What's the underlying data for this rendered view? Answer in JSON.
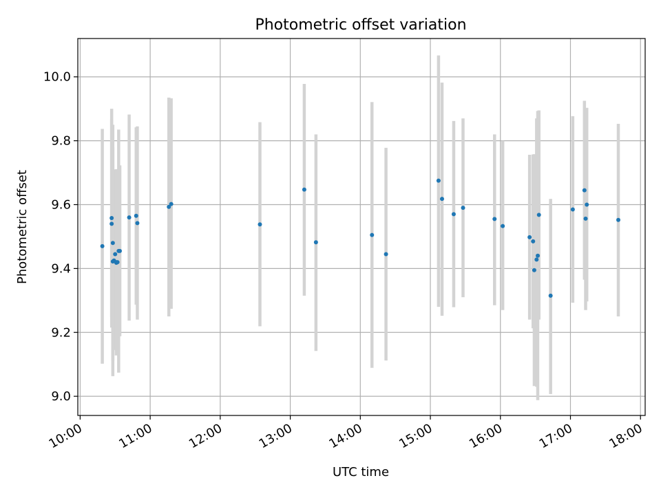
{
  "colors": {
    "point": "#1f77b4",
    "errorbar": "#d3d3d3",
    "grid": "#b0b0b0",
    "axis": "#000000"
  },
  "chart_data": {
    "type": "scatter",
    "title": "Photometric offset variation",
    "xlabel": "UTC time",
    "ylabel": "Photometric offset",
    "grid": true,
    "legend": "none",
    "xlim": [
      "09:58",
      "18:04"
    ],
    "ylim": [
      8.94,
      10.12
    ],
    "x_ticks": [
      "10:00",
      "11:00",
      "12:00",
      "13:00",
      "14:00",
      "15:00",
      "16:00",
      "17:00",
      "18:00"
    ],
    "y_ticks": [
      "9.0",
      "9.2",
      "9.4",
      "9.6",
      "9.8",
      "10.0"
    ],
    "series": [
      {
        "marker": "point with vertical error bar",
        "points": [
          {
            "t": "10:19",
            "y": 9.47,
            "low": 9.102,
            "high": 9.837
          },
          {
            "t": "10:27",
            "y": 9.558,
            "low": 9.248,
            "high": 9.867
          },
          {
            "t": "10:27",
            "y": 9.54,
            "low": 9.215,
            "high": 9.9
          },
          {
            "t": "10:28",
            "y": 9.48,
            "low": 9.111,
            "high": 9.85
          },
          {
            "t": "10:28",
            "y": 9.422,
            "low": 9.063,
            "high": 9.78
          },
          {
            "t": "10:29",
            "y": 9.425,
            "low": 9.145,
            "high": 9.704
          },
          {
            "t": "10:30",
            "y": 9.445,
            "low": 9.159,
            "high": 9.71
          },
          {
            "t": "10:31",
            "y": 9.42,
            "low": 9.128,
            "high": 9.711
          },
          {
            "t": "10:31",
            "y": 9.418,
            "low": 9.16,
            "high": 9.673
          },
          {
            "t": "10:32",
            "y": 9.42,
            "low": 9.207,
            "high": 9.633
          },
          {
            "t": "10:33",
            "y": 9.455,
            "low": 9.074,
            "high": 9.835
          },
          {
            "t": "10:34",
            "y": 9.455,
            "low": 9.188,
            "high": 9.723
          },
          {
            "t": "10:42",
            "y": 9.56,
            "low": 9.237,
            "high": 9.882
          },
          {
            "t": "10:48",
            "y": 9.565,
            "low": 9.287,
            "high": 9.842
          },
          {
            "t": "10:49",
            "y": 9.542,
            "low": 9.24,
            "high": 9.845
          },
          {
            "t": "11:16",
            "y": 9.593,
            "low": 9.25,
            "high": 9.935
          },
          {
            "t": "11:18",
            "y": 9.602,
            "low": 9.274,
            "high": 9.933
          },
          {
            "t": "12:34",
            "y": 9.538,
            "low": 9.219,
            "high": 9.858
          },
          {
            "t": "13:12",
            "y": 9.647,
            "low": 9.315,
            "high": 9.978
          },
          {
            "t": "13:22",
            "y": 9.482,
            "low": 9.142,
            "high": 9.82
          },
          {
            "t": "14:10",
            "y": 9.505,
            "low": 9.089,
            "high": 9.921
          },
          {
            "t": "14:22",
            "y": 9.445,
            "low": 9.112,
            "high": 9.778
          },
          {
            "t": "15:07",
            "y": 9.675,
            "low": 9.28,
            "high": 10.067
          },
          {
            "t": "15:10",
            "y": 9.618,
            "low": 9.252,
            "high": 9.982
          },
          {
            "t": "15:20",
            "y": 9.57,
            "low": 9.279,
            "high": 9.862
          },
          {
            "t": "15:28",
            "y": 9.59,
            "low": 9.31,
            "high": 9.87
          },
          {
            "t": "15:55",
            "y": 9.555,
            "low": 9.285,
            "high": 9.82
          },
          {
            "t": "16:02",
            "y": 9.533,
            "low": 9.27,
            "high": 9.8
          },
          {
            "t": "16:25",
            "y": 9.498,
            "low": 9.24,
            "high": 9.756
          },
          {
            "t": "16:28",
            "y": 9.485,
            "low": 9.213,
            "high": 9.757
          },
          {
            "t": "16:29",
            "y": 9.395,
            "low": 9.032,
            "high": 9.758
          },
          {
            "t": "16:31",
            "y": 9.428,
            "low": 9.03,
            "high": 9.87
          },
          {
            "t": "16:32",
            "y": 9.44,
            "low": 8.988,
            "high": 9.893
          },
          {
            "t": "16:33",
            "y": 9.568,
            "low": 9.24,
            "high": 9.895
          },
          {
            "t": "16:43",
            "y": 9.315,
            "low": 9.007,
            "high": 9.618
          },
          {
            "t": "17:02",
            "y": 9.585,
            "low": 9.293,
            "high": 9.877
          },
          {
            "t": "17:12",
            "y": 9.645,
            "low": 9.365,
            "high": 9.925
          },
          {
            "t": "17:13",
            "y": 9.556,
            "low": 9.27,
            "high": 9.85
          },
          {
            "t": "17:14",
            "y": 9.6,
            "low": 9.297,
            "high": 9.903
          },
          {
            "t": "17:41",
            "y": 9.552,
            "low": 9.25,
            "high": 9.853
          }
        ]
      }
    ]
  }
}
